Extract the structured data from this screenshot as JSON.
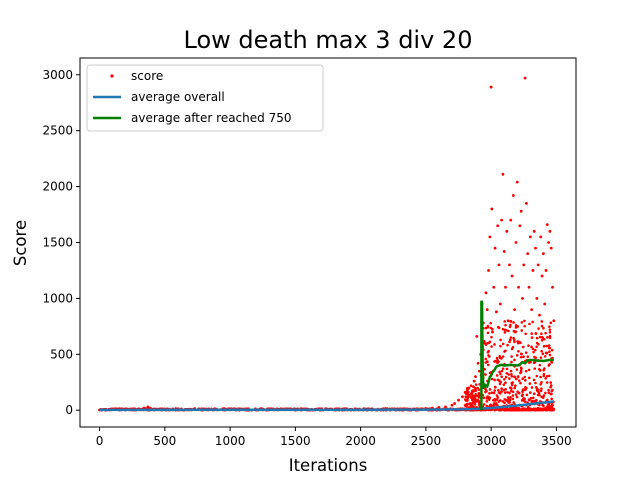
{
  "chart_data": {
    "type": "scatter+line",
    "title": "Low death max 3 div 20",
    "xlabel": "Iterations",
    "ylabel": "Score",
    "xlim": [
      -150,
      3650
    ],
    "ylim": [
      -150,
      3150
    ],
    "xticks": [
      0,
      500,
      1000,
      1500,
      2000,
      2500,
      3000,
      3500
    ],
    "yticks": [
      0,
      500,
      1000,
      1500,
      2000,
      2500,
      3000
    ],
    "legend_position": "top-left",
    "series": [
      {
        "name": "score",
        "kind": "scatter",
        "color": "#ff0000",
        "points": [
          [
            0,
            2
          ],
          [
            40,
            5
          ],
          [
            80,
            3
          ],
          [
            120,
            6
          ],
          [
            160,
            4
          ],
          [
            200,
            8
          ],
          [
            250,
            12
          ],
          [
            300,
            10
          ],
          [
            340,
            20
          ],
          [
            370,
            30
          ],
          [
            390,
            18
          ],
          [
            450,
            8
          ],
          [
            520,
            12
          ],
          [
            600,
            6
          ],
          [
            700,
            5
          ],
          [
            800,
            4
          ],
          [
            900,
            6
          ],
          [
            1000,
            3
          ],
          [
            1100,
            5
          ],
          [
            1200,
            4
          ],
          [
            1300,
            3
          ],
          [
            1400,
            5
          ],
          [
            1500,
            4
          ],
          [
            1600,
            3
          ],
          [
            1700,
            4
          ],
          [
            1800,
            5
          ],
          [
            1900,
            3
          ],
          [
            2000,
            4
          ],
          [
            2100,
            5
          ],
          [
            2200,
            6
          ],
          [
            2300,
            8
          ],
          [
            2400,
            10
          ],
          [
            2500,
            15
          ],
          [
            2550,
            20
          ],
          [
            2600,
            25
          ],
          [
            2650,
            30
          ],
          [
            2700,
            45
          ],
          [
            2720,
            60
          ],
          [
            2750,
            90
          ],
          [
            2780,
            120
          ],
          [
            2800,
            160
          ],
          [
            2830,
            200
          ],
          [
            2850,
            150
          ],
          [
            2870,
            260
          ],
          [
            2880,
            300
          ],
          [
            2890,
            660
          ],
          [
            2900,
            420
          ],
          [
            2910,
            350
          ],
          [
            2920,
            500
          ],
          [
            2930,
            950
          ],
          [
            2940,
            780
          ],
          [
            2950,
            600
          ],
          [
            2960,
            1050
          ],
          [
            2970,
            900
          ],
          [
            2980,
            1250
          ],
          [
            2990,
            1550
          ],
          [
            3000,
            2890
          ],
          [
            3005,
            1800
          ],
          [
            3010,
            700
          ],
          [
            3020,
            1100
          ],
          [
            3030,
            1450
          ],
          [
            3040,
            880
          ],
          [
            3050,
            1650
          ],
          [
            3060,
            1300
          ],
          [
            3070,
            950
          ],
          [
            3080,
            1700
          ],
          [
            3090,
            2110
          ],
          [
            3100,
            1420
          ],
          [
            3110,
            1100
          ],
          [
            3120,
            1600
          ],
          [
            3130,
            800
          ],
          [
            3140,
            1300
          ],
          [
            3150,
            1700
          ],
          [
            3160,
            1200
          ],
          [
            3170,
            1920
          ],
          [
            3180,
            900
          ],
          [
            3190,
            1500
          ],
          [
            3200,
            2040
          ],
          [
            3210,
            1100
          ],
          [
            3220,
            1650
          ],
          [
            3230,
            1780
          ],
          [
            3240,
            1000
          ],
          [
            3250,
            1300
          ],
          [
            3260,
            2970
          ],
          [
            3270,
            1850
          ],
          [
            3280,
            1400
          ],
          [
            3290,
            1100
          ],
          [
            3300,
            1550
          ],
          [
            3310,
            900
          ],
          [
            3320,
            1250
          ],
          [
            3330,
            1600
          ],
          [
            3340,
            1450
          ],
          [
            3350,
            1000
          ],
          [
            3360,
            1300
          ],
          [
            3370,
            850
          ],
          [
            3380,
            1550
          ],
          [
            3390,
            1200
          ],
          [
            3400,
            1400
          ],
          [
            3410,
            950
          ],
          [
            3420,
            1250
          ],
          [
            3430,
            1660
          ],
          [
            3440,
            1500
          ],
          [
            3450,
            1600
          ],
          [
            3460,
            1450
          ],
          [
            3470,
            1100
          ],
          [
            3480,
            800
          ]
        ]
      },
      {
        "name": "average overall",
        "kind": "line",
        "color": "#1f77b4",
        "points": [
          [
            0,
            3
          ],
          [
            500,
            5
          ],
          [
            1000,
            5
          ],
          [
            1500,
            5
          ],
          [
            2000,
            5
          ],
          [
            2500,
            6
          ],
          [
            2800,
            8
          ],
          [
            2900,
            12
          ],
          [
            3000,
            20
          ],
          [
            3100,
            30
          ],
          [
            3200,
            42
          ],
          [
            3300,
            55
          ],
          [
            3400,
            68
          ],
          [
            3480,
            78
          ]
        ]
      },
      {
        "name": "average after reached 750",
        "kind": "line",
        "color": "#008000",
        "points": [
          [
            2925,
            0
          ],
          [
            2925,
            970
          ],
          [
            2930,
            970
          ],
          [
            2935,
            400
          ],
          [
            2940,
            200
          ],
          [
            2950,
            230
          ],
          [
            2970,
            210
          ],
          [
            2980,
            250
          ],
          [
            2990,
            300
          ],
          [
            3000,
            310
          ],
          [
            3010,
            340
          ],
          [
            3020,
            350
          ],
          [
            3040,
            390
          ],
          [
            3060,
            400
          ],
          [
            3080,
            405
          ],
          [
            3100,
            400
          ],
          [
            3150,
            405
          ],
          [
            3200,
            400
          ],
          [
            3220,
            410
          ],
          [
            3240,
            430
          ],
          [
            3260,
            420
          ],
          [
            3280,
            445
          ],
          [
            3300,
            450
          ],
          [
            3350,
            445
          ],
          [
            3400,
            440
          ],
          [
            3450,
            450
          ],
          [
            3480,
            450
          ]
        ]
      }
    ],
    "low_noise": {
      "x_range": [
        0,
        3480
      ],
      "y_max": 15,
      "count": 900,
      "after_2800_count": 650,
      "after_2800_y_max": 800
    }
  }
}
